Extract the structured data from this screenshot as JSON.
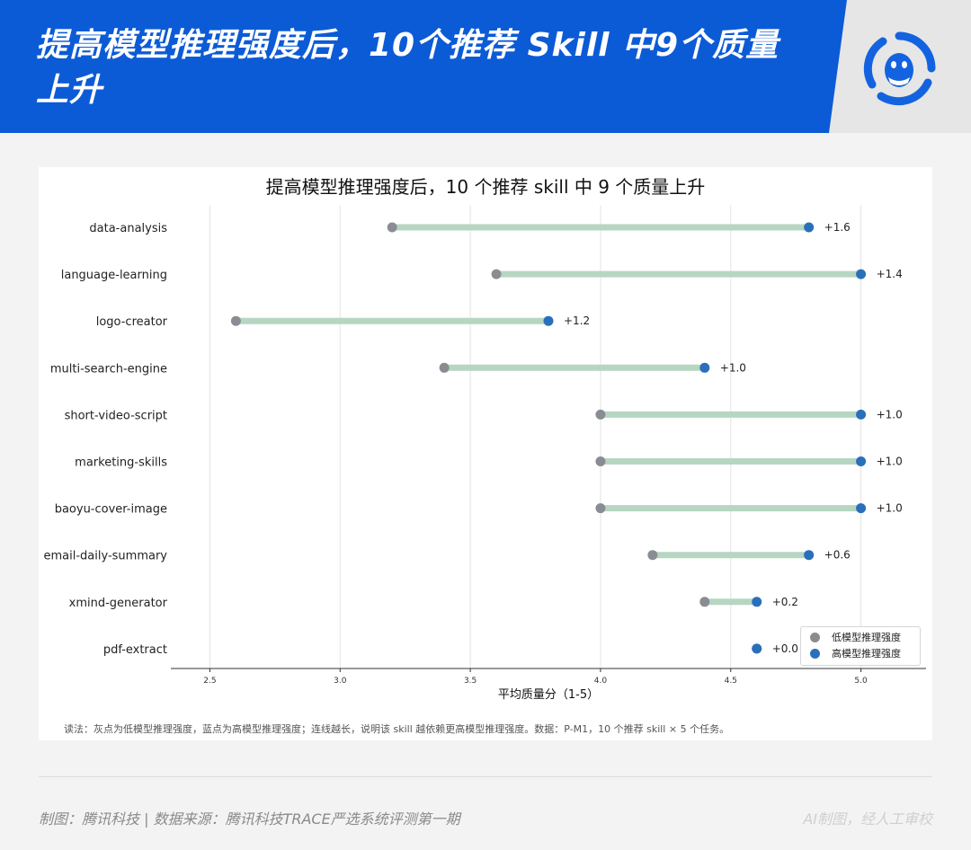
{
  "banner": {
    "title": "提高模型推理强度后，10个推荐 Skill 中9个质量上升"
  },
  "footer": {
    "left": "制图：腾讯科技 | 数据来源：腾讯科技TRACE严选系统评测第一期",
    "right": "AI制图，经人工审校"
  },
  "colors": {
    "banner_blue": "#0c5bd6",
    "low_point": "#898d92",
    "high_point": "#2a6fbc",
    "connector": "#b6d6c2"
  },
  "chart_data": {
    "type": "dumbbell",
    "title": "提高模型推理强度后，10 个推荐 skill 中 9 个质量上升",
    "xlabel": "平均质量分（1-5）",
    "ylabel": "",
    "xlim": [
      2.35,
      5.25
    ],
    "xticks": [
      "2.5",
      "3.0",
      "3.5",
      "4.0",
      "4.5",
      "5.0"
    ],
    "grid": "vertical",
    "legend_position": "bottom-right",
    "categories": [
      "data-analysis",
      "language-learning",
      "logo-creator",
      "multi-search-engine",
      "short-video-script",
      "marketing-skills",
      "baoyu-cover-image",
      "email-daily-summary",
      "xmind-generator",
      "pdf-extract"
    ],
    "series": [
      {
        "name": "低模型推理强度",
        "values": [
          3.2,
          3.6,
          2.6,
          3.4,
          4.0,
          4.0,
          4.0,
          4.2,
          4.4,
          4.6
        ]
      },
      {
        "name": "高模型推理强度",
        "values": [
          4.8,
          5.0,
          3.8,
          4.4,
          5.0,
          5.0,
          5.0,
          4.8,
          4.6,
          4.6
        ]
      }
    ],
    "diff_labels": [
      "+1.6",
      "+1.4",
      "+1.2",
      "+1.0",
      "+1.0",
      "+1.0",
      "+1.0",
      "+0.6",
      "+0.2",
      "+0.0"
    ],
    "note": "读法：灰点为低模型推理强度，蓝点为高模型推理强度；连线越长，说明该 skill 越依赖更高模型推理强度。数据：P-M1，10 个推荐 skill × 5 个任务。"
  }
}
